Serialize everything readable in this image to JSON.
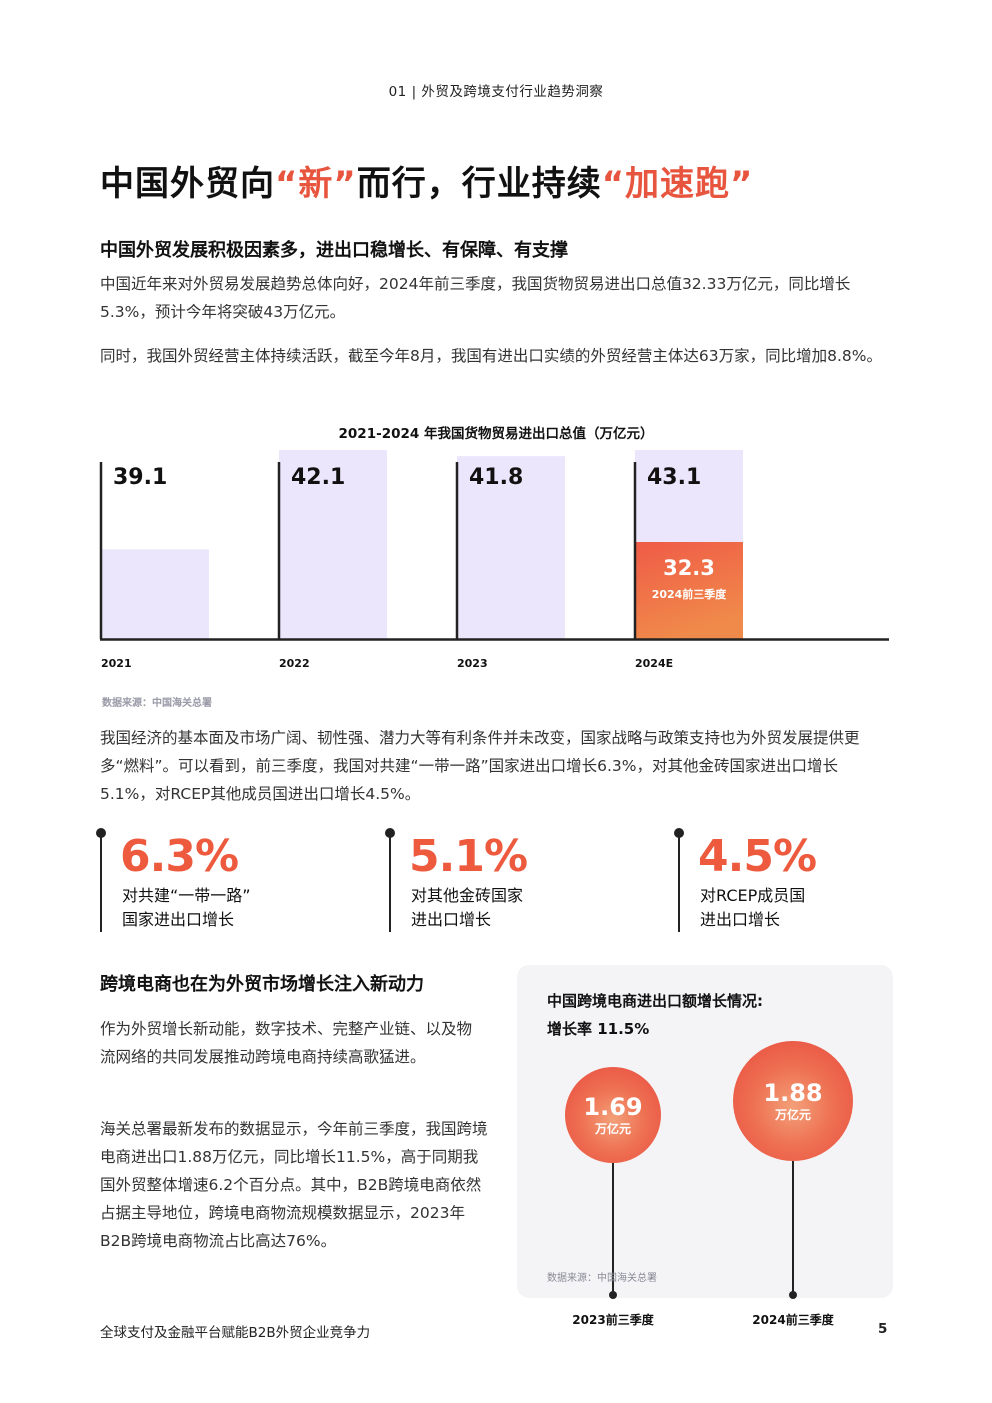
{
  "header": {
    "section": "01 | 外贸及跨境支付行业趋势洞察"
  },
  "title": {
    "part1": "中国外贸向",
    "hl1": "“新”",
    "part2": "而行，行业持续",
    "hl2": "“加速跑”"
  },
  "section1": {
    "heading": "中国外贸发展积极因素多，进出口稳增长、有保障、有支撑",
    "p1": "中国近年来对外贸易发展趋势总体向好，2024年前三季度，我国货物贸易进出口总值32.33万亿元，同比增长5.3%，预计今年将突破43万亿元。",
    "p2": "同时，我国外贸经营主体持续活跃，截至今年8月，我国有进出口实绩的外贸经营主体达63万家，同比增加8.8%。"
  },
  "chart_data": {
    "type": "bar",
    "title": "2021-2024 年我国货物贸易进出口总值（万亿元）",
    "categories": [
      "2021",
      "2022",
      "2023",
      "2024E"
    ],
    "values": [
      39.1,
      42.1,
      41.8,
      43.1
    ],
    "value_labels": [
      "39.1",
      "42.1",
      "41.8",
      "43.1"
    ],
    "highlight": {
      "category": "2024E",
      "value": 32.3,
      "value_label": "32.3",
      "label": "2024前三季度"
    },
    "colors": {
      "bar": "#ebe6fb",
      "highlight_top": "#ef5b47",
      "highlight_bottom": "#f08a4a",
      "axis": "#222222"
    },
    "source": "数据来源：中国海关总署"
  },
  "paragraph3": "我国经济的基本面及市场广阔、韧性强、潜力大等有利条件并未改变，国家战略与政策支持也为外贸发展提供更多“燃料”。可以看到，前三季度，我国对共建“一带一路”国家进出口增长6.3%，对其他金砖国家进出口增长5.1%，对RCEP其他成员国进出口增长4.5%。",
  "stats": [
    {
      "value": "6.3%",
      "label1": "对共建“一带一路”",
      "label2": "国家进出口增长"
    },
    {
      "value": "5.1%",
      "label1": "对其他金砖国家",
      "label2": "进出口增长"
    },
    {
      "value": "4.5%",
      "label1": "对RCEP成员国",
      "label2": "进出口增长"
    }
  ],
  "section2": {
    "heading": "跨境电商也在为外贸市场增长注入新动力",
    "p1": "作为外贸增长新动能，数字技术、完整产业链、以及物流网络的共同发展推动跨境电商持续高歌猛进。",
    "p2": "海关总署最新发布的数据显示，今年前三季度，我国跨境电商进出口1.88万亿元，同比增长11.5%，高于同期我国外贸整体增速6.2个百分点。其中，B2B跨境电商依然占据主导地位，跨境电商物流规模数据显示，2023年B2B跨境电商物流占比高达76%。"
  },
  "panel": {
    "title1": "中国跨境电商进出口额增长情况:",
    "title2": "增长率 11.5%",
    "circles": [
      {
        "value": "1.69",
        "unit": "万亿元",
        "label": "2023前三季度"
      },
      {
        "value": "1.88",
        "unit": "万亿元",
        "label": "2024前三季度"
      }
    ],
    "source": "数据来源：中国海关总署"
  },
  "footer": {
    "left": "全球支付及金融平台赋能B2B外贸企业竞争力",
    "page": "5"
  }
}
